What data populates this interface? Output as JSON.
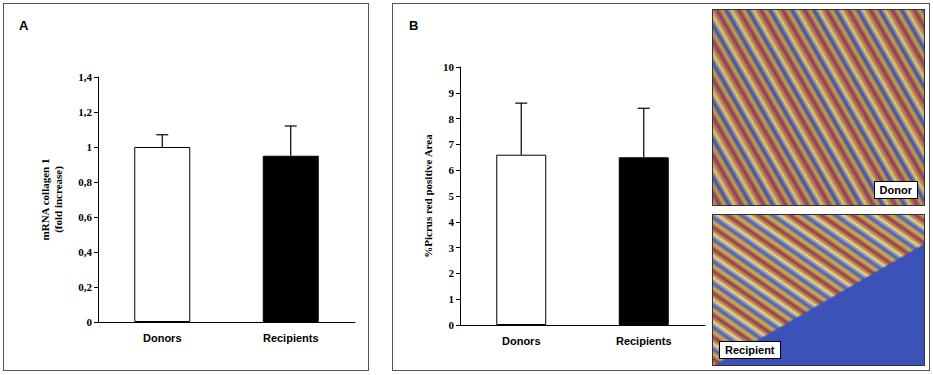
{
  "chart_data": [
    {
      "type": "bar",
      "title": "A",
      "categories": [
        "Donors",
        "Recipients"
      ],
      "values": [
        1.0,
        0.95
      ],
      "errors": [
        0.07,
        0.17
      ],
      "colors": [
        "#ffffff",
        "#000000"
      ],
      "y_label": "mRNA collagen 1\n(fold increase)",
      "ylim": [
        0,
        1.4
      ],
      "yticks": [
        0,
        {
          "value": 0.2,
          "label": "0,2"
        },
        {
          "value": 0.4,
          "label": "0,4"
        },
        {
          "value": 0.6,
          "label": "0,6"
        },
        {
          "value": 0.8,
          "label": "0,8"
        },
        1,
        {
          "value": 1.2,
          "label": "1,2"
        },
        {
          "value": 1.4,
          "label": "1,4"
        }
      ],
      "grid": false
    },
    {
      "type": "bar",
      "title": "B",
      "categories": [
        "Donors",
        "Recipients"
      ],
      "values": [
        6.6,
        6.5
      ],
      "errors": [
        2.0,
        1.9
      ],
      "colors": [
        "#ffffff",
        "#000000"
      ],
      "y_label": "%Picrus red positive Area",
      "ylim": [
        0,
        10
      ],
      "yticks": [
        0,
        1,
        2,
        3,
        4,
        5,
        6,
        7,
        8,
        9,
        10
      ],
      "grid": false
    }
  ],
  "micrographs": [
    "Donor",
    "Recipient"
  ]
}
